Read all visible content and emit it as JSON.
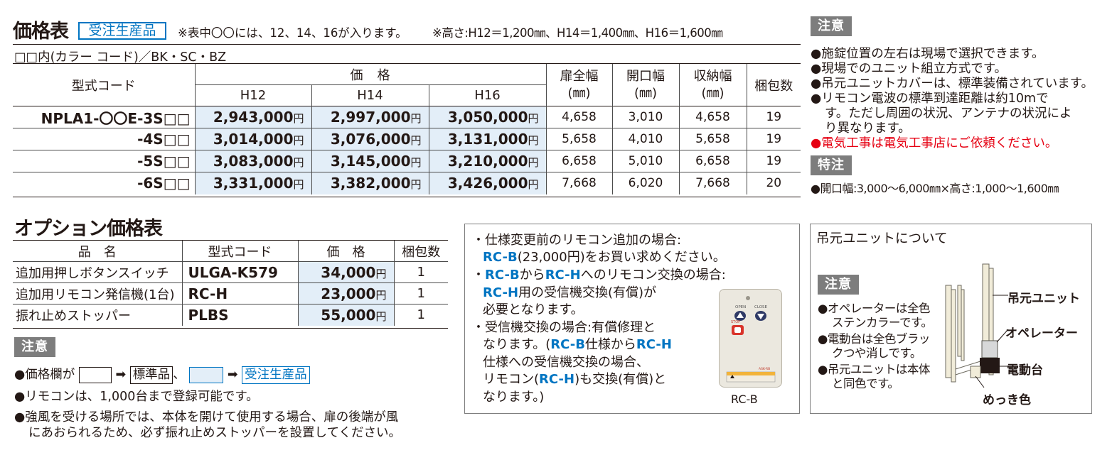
{
  "main": {
    "title": "価格表",
    "badge": "受注生産品",
    "note1": "※表中〇〇には、12、14、16が入ります。",
    "note2": "※高さ:H12＝1,200㎜、H14＝1,400㎜、H16＝1,600㎜",
    "colors": "□□内(カラー コード)／BK・SC・BZ"
  },
  "price_table": {
    "headers": {
      "code": "型式コード",
      "price": "価　格",
      "h12": "H12",
      "h14": "H14",
      "h16": "H16",
      "door_width": "扉全幅",
      "opening_width": "開口幅",
      "storage_width": "収納幅",
      "mm": "(㎜)",
      "pack": "梱包数"
    },
    "unit": "円",
    "rows": [
      {
        "code": "NPLA1-〇〇E-3S□□",
        "h12": "2,943,000",
        "h14": "2,997,000",
        "h16": "3,050,000",
        "door": "4,658",
        "open": "3,010",
        "store": "4,658",
        "pack": "19"
      },
      {
        "code": "-4S□□",
        "h12": "3,014,000",
        "h14": "3,076,000",
        "h16": "3,131,000",
        "door": "5,658",
        "open": "4,010",
        "store": "5,658",
        "pack": "19"
      },
      {
        "code": "-5S□□",
        "h12": "3,083,000",
        "h14": "3,145,000",
        "h16": "3,210,000",
        "door": "6,658",
        "open": "5,010",
        "store": "6,658",
        "pack": "19"
      },
      {
        "code": "-6S□□",
        "h12": "3,331,000",
        "h14": "3,382,000",
        "h16": "3,426,000",
        "door": "7,668",
        "open": "6,020",
        "store": "7,668",
        "pack": "20"
      }
    ]
  },
  "options": {
    "title": "オプション価格表",
    "headers": {
      "name": "品　名",
      "code": "型式コード",
      "price": "価　格",
      "pack": "梱包数"
    },
    "unit": "円",
    "rows": [
      {
        "name": "追加用押しボタンスイッチ",
        "code": "ULGA-K579",
        "price": "34,000",
        "pack": "1"
      },
      {
        "name": "追加用リモコン発信機(1台)",
        "code": "RC-H",
        "price": "23,000",
        "pack": "1"
      },
      {
        "name": "振れ止めストッパー",
        "code": "PLBS",
        "price": "55,000",
        "pack": "1"
      }
    ],
    "caution_tag": "注意",
    "legend": {
      "prefix": "●価格欄が",
      "arrow": "➡",
      "standard": "標準品",
      "sep": "、",
      "order": "受注生産品"
    },
    "notes": [
      "●リモコンは、1,000台まで登録可能です。",
      "●強風を受ける場所では、本体を開けて使用する場合、扉の後端が風",
      "にあおられるため、必ず振れ止めストッパーを設置してください。"
    ]
  },
  "rc_panel": {
    "l1": "・仕様変更前のリモコン追加の場合:",
    "l2a": "RC-B",
    "l2b": "(23,000円)をお買い求めください。",
    "l3a": "・",
    "l3b": "RC-B",
    "l3c": "から",
    "l3d": "RC-H",
    "l3e": "へのリモコン交換の場合:",
    "l4a": "RC-H",
    "l4b": "用の受信機交換(有償)が",
    "l5": "必要となります。",
    "l6": "・受信機交換の場合:有償修理と",
    "l7a": "なります。(",
    "l7b": "RC-B",
    "l7c": "仕様から",
    "l7d": "RC-H",
    "l8": "仕様への受信機交換の場合、",
    "l9a": "リモコン(",
    "l9b": "RC-H",
    "l9c": ")も交換(有償)と",
    "l10": "なります。)",
    "remote": {
      "open": "OPEN",
      "close": "CLOSE",
      "stop": "STOP",
      "caption": "RC-B"
    }
  },
  "right": {
    "caution_tag": "注意",
    "notes": [
      "●施錠位置の左右は現場で選択できます。",
      "●現場でのユニット組立方式です。",
      "●吊元ユニットカバーは、標準装備されています。",
      "●リモコン電波の標準到達距離は約10mで",
      "す。ただし周囲の状況、アンテナの状況によ",
      "り異なります。"
    ],
    "red_note": "●電気工事は電気工事店にご依頼ください。",
    "tokuchu_tag": "特注",
    "tokuchu_note": "●開口幅:3,000～6,000㎜×高さ:1,000～1,600㎜"
  },
  "unit_panel": {
    "title": "吊元ユニットについて",
    "caution_tag": "注意",
    "notes": [
      "●オペレーターは全色",
      "ステンカラーです。",
      "●電動台は全色ブラッ",
      "クつや消しです。",
      "●吊元ユニットは本体",
      "と同色です。"
    ],
    "labels": {
      "unit": "吊元ユニット",
      "operator": "オペレーター",
      "base": "電動台",
      "plating": "めっき色"
    }
  }
}
